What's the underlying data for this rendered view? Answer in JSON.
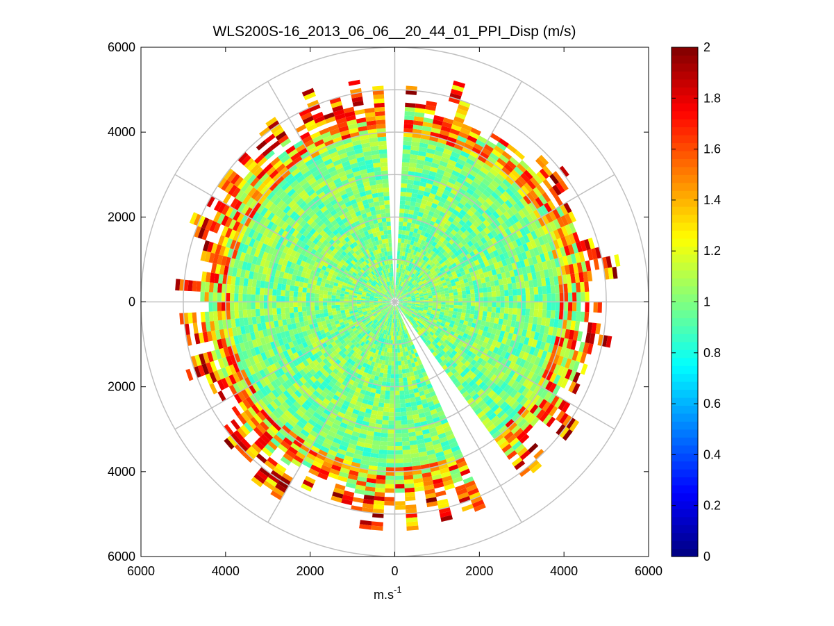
{
  "chart_data": {
    "type": "heatmap",
    "subtype": "polar-ppi-scan",
    "title": "WLS200S-16_2013_06_06__20_44_01_PPI_Disp (m/s)",
    "xlabel": "m.s",
    "xlabel_superscript": "-1",
    "ylabel": "",
    "xlim": [
      -6000,
      6000
    ],
    "ylim": [
      -6000,
      6000
    ],
    "x_ticks": [
      -6000,
      -4000,
      -2000,
      0,
      2000,
      4000,
      6000
    ],
    "y_ticks": [
      -6000,
      -4000,
      -2000,
      0,
      2000,
      4000,
      6000
    ],
    "x_tick_labels": [
      "6000",
      "4000",
      "2000",
      "0",
      "2000",
      "4000",
      "6000"
    ],
    "y_tick_labels": [
      "6000",
      "4000",
      "2000",
      "0",
      "2000",
      "4000",
      "6000"
    ],
    "polar_grid": {
      "range_rings_m": [
        1000,
        2000,
        3000,
        4000,
        5000,
        6000
      ],
      "spoke_angles_deg": [
        0,
        30,
        60,
        90,
        120,
        150,
        180,
        210,
        240,
        270,
        300,
        330
      ]
    },
    "scan": {
      "range_gate_m": 100,
      "min_range_m": 100,
      "max_range_m": 5400,
      "azimuth_step_deg": 3,
      "gaps_deg": [
        [
          -3.5,
          3.0
        ],
        [
          145.0,
          157.0
        ]
      ],
      "typical_value": 1.0,
      "edge_value": 1.9,
      "note": "Values near 1.0 m/s across most of the scan, rising to 1.6-2.0 m/s at far ranges"
    },
    "colorbar": {
      "colormap": "jet",
      "min": 0,
      "max": 2,
      "ticks": [
        0,
        0.2,
        0.4,
        0.6,
        0.8,
        1,
        1.2,
        1.4,
        1.6,
        1.8,
        2
      ],
      "tick_labels": [
        "0",
        "0.2",
        "0.4",
        "0.6",
        "0.8",
        "1",
        "1.2",
        "1.4",
        "1.6",
        "1.8",
        "2"
      ]
    },
    "grid_color": "#c0c0c0"
  }
}
